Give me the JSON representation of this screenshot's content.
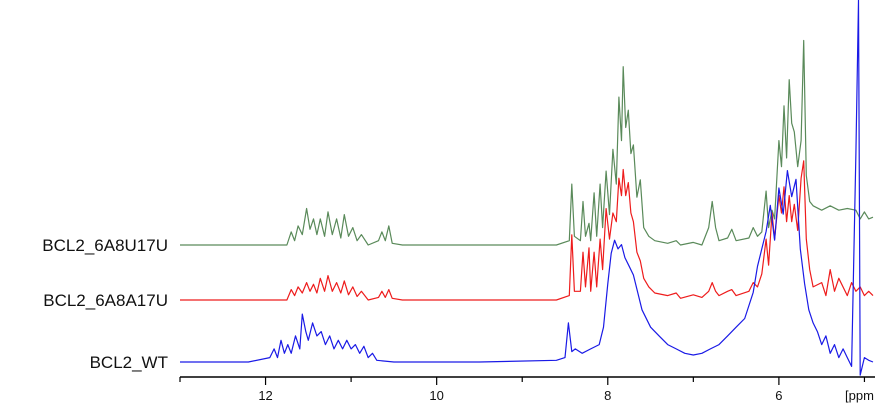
{
  "chart_data": {
    "type": "line",
    "title": "",
    "xlabel": "",
    "ylabel": "",
    "x_unit": "[ppm",
    "x_reversed": true,
    "xlim": [
      13.0,
      4.9
    ],
    "x_ticks": [
      12,
      10,
      8,
      6
    ],
    "grid": false,
    "legend": "series labels at left of each trace",
    "series": [
      {
        "name": "BCL2_6A8U17U",
        "color": "#5a8a5a",
        "points": [
          [
            13.0,
            0.0
          ],
          [
            12.0,
            0.0
          ],
          [
            11.75,
            0.0
          ],
          [
            11.7,
            0.15
          ],
          [
            11.66,
            0.05
          ],
          [
            11.62,
            0.22
          ],
          [
            11.57,
            0.12
          ],
          [
            11.52,
            0.42
          ],
          [
            11.48,
            0.18
          ],
          [
            11.44,
            0.3
          ],
          [
            11.4,
            0.12
          ],
          [
            11.36,
            0.3
          ],
          [
            11.31,
            0.1
          ],
          [
            11.27,
            0.38
          ],
          [
            11.22,
            0.12
          ],
          [
            11.17,
            0.3
          ],
          [
            11.12,
            0.08
          ],
          [
            11.08,
            0.35
          ],
          [
            11.03,
            0.1
          ],
          [
            10.98,
            0.2
          ],
          [
            10.93,
            0.05
          ],
          [
            10.88,
            0.12
          ],
          [
            10.8,
            0.0
          ],
          [
            10.68,
            0.05
          ],
          [
            10.64,
            0.15
          ],
          [
            10.6,
            0.05
          ],
          [
            10.56,
            0.22
          ],
          [
            10.52,
            0.02
          ],
          [
            10.4,
            0.0
          ],
          [
            9.5,
            0.0
          ],
          [
            8.6,
            0.0
          ],
          [
            8.45,
            0.05
          ],
          [
            8.42,
            0.7
          ],
          [
            8.39,
            0.1
          ],
          [
            8.32,
            0.05
          ],
          [
            8.29,
            0.5
          ],
          [
            8.26,
            0.1
          ],
          [
            8.22,
            0.25
          ],
          [
            8.2,
            0.05
          ],
          [
            8.16,
            0.6
          ],
          [
            8.13,
            0.1
          ],
          [
            8.09,
            0.7
          ],
          [
            8.06,
            0.2
          ],
          [
            8.02,
            0.85
          ],
          [
            7.98,
            0.35
          ],
          [
            7.94,
            1.1
          ],
          [
            7.9,
            0.7
          ],
          [
            7.87,
            1.7
          ],
          [
            7.84,
            1.2
          ],
          [
            7.82,
            2.05
          ],
          [
            7.79,
            1.35
          ],
          [
            7.76,
            1.55
          ],
          [
            7.73,
            1.05
          ],
          [
            7.7,
            1.15
          ],
          [
            7.66,
            0.55
          ],
          [
            7.62,
            0.75
          ],
          [
            7.58,
            0.2
          ],
          [
            7.52,
            0.1
          ],
          [
            7.45,
            0.05
          ],
          [
            7.3,
            0.02
          ],
          [
            7.2,
            0.05
          ],
          [
            7.15,
            0.0
          ],
          [
            7.0,
            0.03
          ],
          [
            6.9,
            0.0
          ],
          [
            6.82,
            0.2
          ],
          [
            6.78,
            0.5
          ],
          [
            6.74,
            0.2
          ],
          [
            6.7,
            0.05
          ],
          [
            6.6,
            0.08
          ],
          [
            6.55,
            0.18
          ],
          [
            6.5,
            0.05
          ],
          [
            6.35,
            0.08
          ],
          [
            6.3,
            0.2
          ],
          [
            6.25,
            0.1
          ],
          [
            6.2,
            0.15
          ],
          [
            6.15,
            0.62
          ],
          [
            6.12,
            0.2
          ],
          [
            6.08,
            0.4
          ],
          [
            6.05,
            0.3
          ],
          [
            6.0,
            1.2
          ],
          [
            5.97,
            0.9
          ],
          [
            5.94,
            1.6
          ],
          [
            5.91,
            1.0
          ],
          [
            5.88,
            1.9
          ],
          [
            5.85,
            1.4
          ],
          [
            5.82,
            1.3
          ],
          [
            5.78,
            0.9
          ],
          [
            5.74,
            1.2
          ],
          [
            5.71,
            2.35
          ],
          [
            5.68,
            0.8
          ],
          [
            5.64,
            0.5
          ],
          [
            5.6,
            0.45
          ],
          [
            5.5,
            0.4
          ],
          [
            5.4,
            0.45
          ],
          [
            5.3,
            0.4
          ],
          [
            5.2,
            0.42
          ],
          [
            5.1,
            0.4
          ],
          [
            5.05,
            0.3
          ],
          [
            5.0,
            0.38
          ],
          [
            4.95,
            0.3
          ],
          [
            4.9,
            0.32
          ]
        ]
      },
      {
        "name": "BCL2_6A8A17U",
        "color": "#ee1c1c",
        "points": [
          [
            13.0,
            0.0
          ],
          [
            12.0,
            0.0
          ],
          [
            11.75,
            0.0
          ],
          [
            11.7,
            0.12
          ],
          [
            11.66,
            0.05
          ],
          [
            11.62,
            0.15
          ],
          [
            11.57,
            0.08
          ],
          [
            11.52,
            0.2
          ],
          [
            11.48,
            0.1
          ],
          [
            11.44,
            0.18
          ],
          [
            11.4,
            0.08
          ],
          [
            11.36,
            0.25
          ],
          [
            11.31,
            0.1
          ],
          [
            11.27,
            0.28
          ],
          [
            11.22,
            0.1
          ],
          [
            11.17,
            0.2
          ],
          [
            11.12,
            0.08
          ],
          [
            11.08,
            0.22
          ],
          [
            11.03,
            0.06
          ],
          [
            10.98,
            0.15
          ],
          [
            10.93,
            0.04
          ],
          [
            10.88,
            0.1
          ],
          [
            10.8,
            0.0
          ],
          [
            10.68,
            0.03
          ],
          [
            10.64,
            0.1
          ],
          [
            10.6,
            0.03
          ],
          [
            10.56,
            0.12
          ],
          [
            10.52,
            0.02
          ],
          [
            10.4,
            0.0
          ],
          [
            9.5,
            0.0
          ],
          [
            8.6,
            0.0
          ],
          [
            8.45,
            0.05
          ],
          [
            8.42,
            0.75
          ],
          [
            8.39,
            0.1
          ],
          [
            8.32,
            0.1
          ],
          [
            8.29,
            0.55
          ],
          [
            8.26,
            0.15
          ],
          [
            8.22,
            0.6
          ],
          [
            8.2,
            0.1
          ],
          [
            8.16,
            0.55
          ],
          [
            8.13,
            0.15
          ],
          [
            8.09,
            0.7
          ],
          [
            8.06,
            0.35
          ],
          [
            8.02,
            1.05
          ],
          [
            7.98,
            0.7
          ],
          [
            7.94,
            1.0
          ],
          [
            7.9,
            0.9
          ],
          [
            7.87,
            1.4
          ],
          [
            7.84,
            1.2
          ],
          [
            7.82,
            1.5
          ],
          [
            7.79,
            1.2
          ],
          [
            7.76,
            1.35
          ],
          [
            7.73,
            1.0
          ],
          [
            7.7,
            0.9
          ],
          [
            7.66,
            0.55
          ],
          [
            7.62,
            0.45
          ],
          [
            7.58,
            0.25
          ],
          [
            7.52,
            0.15
          ],
          [
            7.45,
            0.08
          ],
          [
            7.3,
            0.05
          ],
          [
            7.2,
            0.08
          ],
          [
            7.15,
            0.02
          ],
          [
            7.0,
            0.06
          ],
          [
            6.9,
            0.03
          ],
          [
            6.82,
            0.1
          ],
          [
            6.78,
            0.2
          ],
          [
            6.74,
            0.1
          ],
          [
            6.7,
            0.05
          ],
          [
            6.6,
            0.1
          ],
          [
            6.55,
            0.12
          ],
          [
            6.5,
            0.05
          ],
          [
            6.35,
            0.1
          ],
          [
            6.3,
            0.2
          ],
          [
            6.25,
            0.15
          ],
          [
            6.2,
            0.3
          ],
          [
            6.15,
            0.7
          ],
          [
            6.12,
            0.4
          ],
          [
            6.08,
            1.0
          ],
          [
            6.05,
            0.7
          ],
          [
            6.0,
            1.2
          ],
          [
            5.97,
            1.0
          ],
          [
            5.94,
            1.3
          ],
          [
            5.91,
            0.9
          ],
          [
            5.88,
            1.2
          ],
          [
            5.85,
            0.9
          ],
          [
            5.82,
            1.1
          ],
          [
            5.78,
            0.8
          ],
          [
            5.74,
            1.4
          ],
          [
            5.71,
            1.6
          ],
          [
            5.68,
            0.7
          ],
          [
            5.64,
            0.35
          ],
          [
            5.6,
            0.15
          ],
          [
            5.5,
            0.2
          ],
          [
            5.45,
            0.05
          ],
          [
            5.4,
            0.35
          ],
          [
            5.35,
            0.1
          ],
          [
            5.3,
            0.25
          ],
          [
            5.2,
            0.05
          ],
          [
            5.15,
            0.2
          ],
          [
            5.1,
            0.1
          ],
          [
            5.05,
            0.15
          ],
          [
            5.0,
            0.05
          ],
          [
            4.95,
            0.1
          ],
          [
            4.9,
            0.05
          ]
        ]
      },
      {
        "name": "BCL2_WT",
        "color": "#1a1ae6",
        "points": [
          [
            13.0,
            0.0
          ],
          [
            12.2,
            0.0
          ],
          [
            11.95,
            0.05
          ],
          [
            11.9,
            0.15
          ],
          [
            11.86,
            0.05
          ],
          [
            11.82,
            0.25
          ],
          [
            11.78,
            0.1
          ],
          [
            11.74,
            0.2
          ],
          [
            11.7,
            0.1
          ],
          [
            11.65,
            0.3
          ],
          [
            11.6,
            0.15
          ],
          [
            11.57,
            0.55
          ],
          [
            11.53,
            0.35
          ],
          [
            11.5,
            0.25
          ],
          [
            11.45,
            0.45
          ],
          [
            11.4,
            0.3
          ],
          [
            11.35,
            0.35
          ],
          [
            11.3,
            0.2
          ],
          [
            11.25,
            0.3
          ],
          [
            11.2,
            0.15
          ],
          [
            11.15,
            0.25
          ],
          [
            11.1,
            0.15
          ],
          [
            11.05,
            0.25
          ],
          [
            11.0,
            0.15
          ],
          [
            10.95,
            0.2
          ],
          [
            10.9,
            0.1
          ],
          [
            10.85,
            0.18
          ],
          [
            10.8,
            0.05
          ],
          [
            10.75,
            0.1
          ],
          [
            10.7,
            0.02
          ],
          [
            10.5,
            0.0
          ],
          [
            9.5,
            0.0
          ],
          [
            8.6,
            0.02
          ],
          [
            8.5,
            0.05
          ],
          [
            8.46,
            0.45
          ],
          [
            8.42,
            0.12
          ],
          [
            8.38,
            0.15
          ],
          [
            8.3,
            0.1
          ],
          [
            8.2,
            0.15
          ],
          [
            8.1,
            0.2
          ],
          [
            8.05,
            0.4
          ],
          [
            8.0,
            0.9
          ],
          [
            7.96,
            1.25
          ],
          [
            7.92,
            1.4
          ],
          [
            7.88,
            1.3
          ],
          [
            7.84,
            1.35
          ],
          [
            7.8,
            1.2
          ],
          [
            7.75,
            1.1
          ],
          [
            7.7,
            1.0
          ],
          [
            7.65,
            0.8
          ],
          [
            7.6,
            0.6
          ],
          [
            7.5,
            0.4
          ],
          [
            7.4,
            0.3
          ],
          [
            7.3,
            0.2
          ],
          [
            7.2,
            0.15
          ],
          [
            7.1,
            0.1
          ],
          [
            7.0,
            0.08
          ],
          [
            6.9,
            0.1
          ],
          [
            6.8,
            0.15
          ],
          [
            6.7,
            0.2
          ],
          [
            6.6,
            0.3
          ],
          [
            6.5,
            0.4
          ],
          [
            6.4,
            0.5
          ],
          [
            6.3,
            0.8
          ],
          [
            6.25,
            1.1
          ],
          [
            6.2,
            1.3
          ],
          [
            6.15,
            1.5
          ],
          [
            6.1,
            1.8
          ],
          [
            6.05,
            1.4
          ],
          [
            6.0,
            2.0
          ],
          [
            5.95,
            1.7
          ],
          [
            5.9,
            2.2
          ],
          [
            5.85,
            1.9
          ],
          [
            5.8,
            2.1
          ],
          [
            5.75,
            1.3
          ],
          [
            5.7,
            0.9
          ],
          [
            5.65,
            0.6
          ],
          [
            5.6,
            0.45
          ],
          [
            5.55,
            0.35
          ],
          [
            5.5,
            0.2
          ],
          [
            5.45,
            0.3
          ],
          [
            5.4,
            0.1
          ],
          [
            5.35,
            0.2
          ],
          [
            5.3,
            0.05
          ],
          [
            5.25,
            0.15
          ],
          [
            5.2,
            0.05
          ],
          [
            5.15,
            -0.05
          ],
          [
            5.1,
            2.4
          ],
          [
            5.07,
            6.0
          ],
          [
            5.05,
            -0.15
          ],
          [
            5.0,
            0.05
          ],
          [
            4.95,
            0.02
          ],
          [
            4.9,
            0.0
          ]
        ]
      }
    ]
  }
}
